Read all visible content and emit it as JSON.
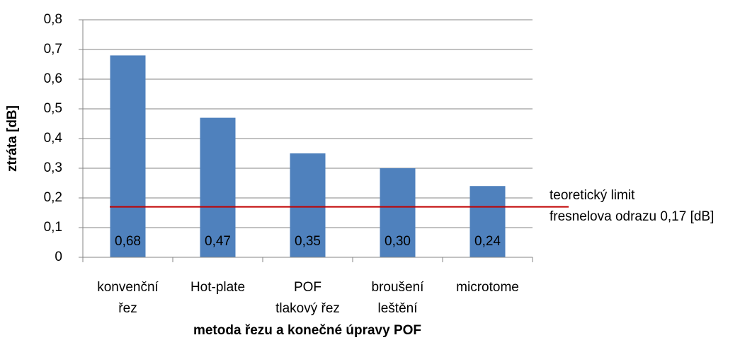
{
  "chart_data": {
    "type": "bar",
    "ylabel": "ztráta [dB]",
    "xlabel": "metoda řezu a konečné úpravy POF",
    "categories": [
      [
        "konvenční",
        "řez"
      ],
      [
        "Hot-plate"
      ],
      [
        "POF",
        "tlakový řez"
      ],
      [
        "broušení",
        "leštění"
      ],
      [
        "microtome"
      ]
    ],
    "values": [
      0.68,
      0.47,
      0.35,
      0.3,
      0.24
    ],
    "value_labels": [
      "0,68",
      "0,47",
      "0,35",
      "0,30",
      "0,24"
    ],
    "color": "#4f81bd",
    "ylim": [
      0,
      0.8
    ],
    "yticks": [
      0,
      {
        "value": 0.1,
        "label": "0,1"
      },
      {
        "value": 0.2,
        "label": "0,2"
      },
      {
        "value": 0.3,
        "label": "0,3"
      },
      {
        "value": 0.4,
        "label": "0,4"
      },
      {
        "value": 0.5,
        "label": "0,5"
      },
      {
        "value": 0.6,
        "label": "0,6"
      },
      {
        "value": 0.7,
        "label": "0,7"
      },
      {
        "value": 0.8,
        "label": "0,8"
      }
    ],
    "grid": true,
    "reference_line": {
      "value": 0.17,
      "color": "#c00000",
      "label": [
        "teoretický limit",
        "fresnelova odrazu 0,17 [dB]"
      ]
    }
  }
}
